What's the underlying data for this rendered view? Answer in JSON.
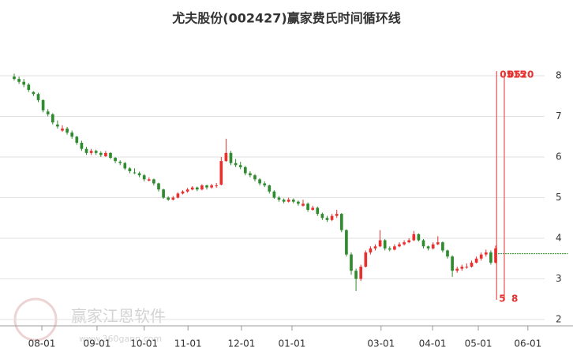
{
  "chart_data": {
    "type": "candlestick",
    "title": "尤夫股份(002427)赢家费氏时间循环线",
    "watermark": {
      "brand": "赢家江恩软件",
      "url": "www.360gann.com"
    },
    "up_color": "#e8312f",
    "down_color": "#2e8b2e",
    "xlim": [
      0,
      115
    ],
    "ylim": [
      2,
      8
    ],
    "yticks": [
      2,
      3,
      4,
      5,
      6,
      7,
      8
    ],
    "xticks": [
      {
        "value": 5.74,
        "label": "08-01"
      },
      {
        "value": 17.2,
        "label": "09-01"
      },
      {
        "value": 27.0,
        "label": "10-01"
      },
      {
        "value": 36.1,
        "label": "11-01"
      },
      {
        "value": 47.2,
        "label": "12-01"
      },
      {
        "value": 57.7,
        "label": "01-01"
      },
      {
        "value": 76.2,
        "label": "03-01"
      },
      {
        "value": 86.9,
        "label": "04-01"
      },
      {
        "value": 96.4,
        "label": "05-01"
      },
      {
        "value": 106.7,
        "label": "06-01"
      }
    ],
    "grid": true,
    "ohlc": [
      [
        7.98,
        8.05,
        7.88,
        7.92
      ],
      [
        7.92,
        7.98,
        7.8,
        7.85
      ],
      [
        7.85,
        7.92,
        7.72,
        7.78
      ],
      [
        7.78,
        7.82,
        7.6,
        7.65
      ],
      [
        7.6,
        7.62,
        7.5,
        7.55
      ],
      [
        7.55,
        7.58,
        7.35,
        7.4
      ],
      [
        7.4,
        7.42,
        7.1,
        7.15
      ],
      [
        7.12,
        7.18,
        7.0,
        7.05
      ],
      [
        7.05,
        7.08,
        6.8,
        6.85
      ],
      [
        6.8,
        6.9,
        6.7,
        6.75
      ],
      [
        6.65,
        6.78,
        6.62,
        6.7
      ],
      [
        6.7,
        6.74,
        6.55,
        6.6
      ],
      [
        6.6,
        6.65,
        6.45,
        6.5
      ],
      [
        6.5,
        6.52,
        6.3,
        6.35
      ],
      [
        6.35,
        6.4,
        6.15,
        6.2
      ],
      [
        6.2,
        6.25,
        6.05,
        6.1
      ],
      [
        6.1,
        6.2,
        6.05,
        6.15
      ],
      [
        6.15,
        6.18,
        6.05,
        6.1
      ],
      [
        6.1,
        6.14,
        6.0,
        6.05
      ],
      [
        6.02,
        6.15,
        6.0,
        6.1
      ],
      [
        6.1,
        6.12,
        5.95,
        5.98
      ],
      [
        5.98,
        6.0,
        5.85,
        5.9
      ],
      [
        5.88,
        5.92,
        5.8,
        5.85
      ],
      [
        5.85,
        5.88,
        5.68,
        5.72
      ],
      [
        5.72,
        5.75,
        5.6,
        5.65
      ],
      [
        5.62,
        5.72,
        5.58,
        5.6
      ],
      [
        5.6,
        5.64,
        5.5,
        5.55
      ],
      [
        5.55,
        5.58,
        5.4,
        5.45
      ],
      [
        5.42,
        5.5,
        5.4,
        5.45
      ],
      [
        5.45,
        5.47,
        5.3,
        5.35
      ],
      [
        5.35,
        5.37,
        5.15,
        5.2
      ],
      [
        5.2,
        5.22,
        4.97,
        5.0
      ],
      [
        5.0,
        5.03,
        4.92,
        4.95
      ],
      [
        4.95,
        5.04,
        4.93,
        5.0
      ],
      [
        5.0,
        5.13,
        4.98,
        5.1
      ],
      [
        5.1,
        5.18,
        5.08,
        5.15
      ],
      [
        5.15,
        5.24,
        5.12,
        5.2
      ],
      [
        5.2,
        5.28,
        5.18,
        5.25
      ],
      [
        5.25,
        5.27,
        5.16,
        5.2
      ],
      [
        5.2,
        5.33,
        5.18,
        5.3
      ],
      [
        5.3,
        5.32,
        5.2,
        5.25
      ],
      [
        5.25,
        5.34,
        5.22,
        5.3
      ],
      [
        5.3,
        5.36,
        5.24,
        5.3
      ],
      [
        5.32,
        6.0,
        5.3,
        5.9
      ],
      [
        5.9,
        6.45,
        5.88,
        6.1
      ],
      [
        6.1,
        6.15,
        5.8,
        5.85
      ],
      [
        5.85,
        5.95,
        5.75,
        5.8
      ],
      [
        5.8,
        5.88,
        5.7,
        5.75
      ],
      [
        5.75,
        5.78,
        5.55,
        5.6
      ],
      [
        5.6,
        5.65,
        5.5,
        5.55
      ],
      [
        5.55,
        5.58,
        5.4,
        5.45
      ],
      [
        5.45,
        5.48,
        5.3,
        5.35
      ],
      [
        5.35,
        5.4,
        5.26,
        5.3
      ],
      [
        5.3,
        5.32,
        5.1,
        5.15
      ],
      [
        5.15,
        5.18,
        4.97,
        5.0
      ],
      [
        5.0,
        5.04,
        4.9,
        4.95
      ],
      [
        4.95,
        4.98,
        4.86,
        4.9
      ],
      [
        4.9,
        5.0,
        4.88,
        4.95
      ],
      [
        4.95,
        4.98,
        4.86,
        4.9
      ],
      [
        4.9,
        4.93,
        4.8,
        4.85
      ],
      [
        4.8,
        4.95,
        4.78,
        4.85
      ],
      [
        4.85,
        4.88,
        4.65,
        4.7
      ],
      [
        4.7,
        4.8,
        4.68,
        4.75
      ],
      [
        4.75,
        4.78,
        4.55,
        4.6
      ],
      [
        4.6,
        4.63,
        4.45,
        4.5
      ],
      [
        4.5,
        4.55,
        4.4,
        4.45
      ],
      [
        4.45,
        4.6,
        4.42,
        4.55
      ],
      [
        4.55,
        4.7,
        4.5,
        4.6
      ],
      [
        4.6,
        4.62,
        4.15,
        4.2
      ],
      [
        4.2,
        4.22,
        3.55,
        3.6
      ],
      [
        3.6,
        3.65,
        3.1,
        3.2
      ],
      [
        3.2,
        3.25,
        2.7,
        3.0
      ],
      [
        3.0,
        3.35,
        2.95,
        3.3
      ],
      [
        3.3,
        3.7,
        3.28,
        3.65
      ],
      [
        3.65,
        3.8,
        3.6,
        3.75
      ],
      [
        3.75,
        3.85,
        3.7,
        3.8
      ],
      [
        3.8,
        4.2,
        3.78,
        3.95
      ],
      [
        3.95,
        3.98,
        3.7,
        3.75
      ],
      [
        3.75,
        3.8,
        3.68,
        3.72
      ],
      [
        3.72,
        3.85,
        3.7,
        3.8
      ],
      [
        3.8,
        3.9,
        3.78,
        3.85
      ],
      [
        3.85,
        3.95,
        3.82,
        3.9
      ],
      [
        3.9,
        4.0,
        3.88,
        3.95
      ],
      [
        3.95,
        4.18,
        3.93,
        4.1
      ],
      [
        4.1,
        4.12,
        3.92,
        3.95
      ],
      [
        3.95,
        3.98,
        3.75,
        3.8
      ],
      [
        3.8,
        3.82,
        3.7,
        3.75
      ],
      [
        3.75,
        3.9,
        3.72,
        3.85
      ],
      [
        3.85,
        4.05,
        3.83,
        3.9
      ],
      [
        3.9,
        3.92,
        3.65,
        3.7
      ],
      [
        3.7,
        3.72,
        3.5,
        3.55
      ],
      [
        3.55,
        3.58,
        3.05,
        3.2
      ],
      [
        3.2,
        3.3,
        3.15,
        3.25
      ],
      [
        3.25,
        3.35,
        3.2,
        3.3
      ],
      [
        3.3,
        3.38,
        3.25,
        3.3
      ],
      [
        3.3,
        3.45,
        3.28,
        3.4
      ],
      [
        3.4,
        3.55,
        3.38,
        3.5
      ],
      [
        3.5,
        3.65,
        3.45,
        3.6
      ],
      [
        3.6,
        3.72,
        3.55,
        3.65
      ],
      [
        3.65,
        3.7,
        3.35,
        3.4
      ],
      [
        3.4,
        3.82,
        3.38,
        3.75
      ]
    ],
    "cycle_lines": [
      {
        "x": 100.2,
        "top_label": "0515",
        "bottom_label": "5",
        "color": "#e8312f"
      },
      {
        "x": 101.8,
        "top_label": "0520",
        "bottom_label": "8",
        "color": "#e8312f"
      }
    ],
    "reference_line": {
      "y": 3.62,
      "from_x": 100,
      "color": "#2e8b2e"
    }
  }
}
